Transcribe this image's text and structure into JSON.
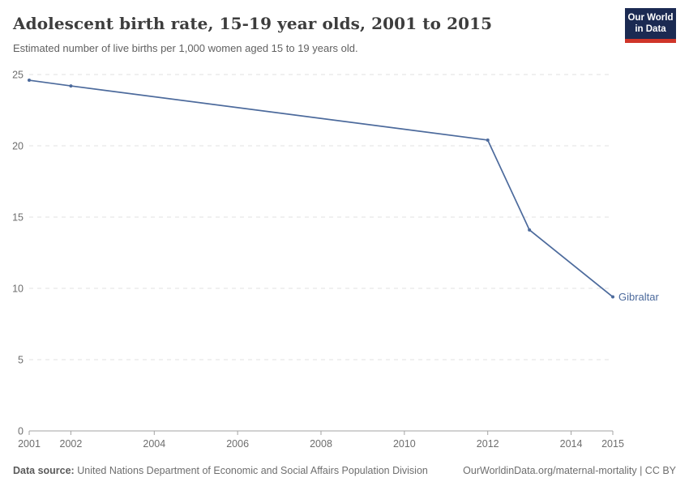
{
  "header": {
    "title": "Adolescent birth rate, 15-19 year olds, 2001 to 2015",
    "subtitle": "Estimated number of live births per 1,000 women aged 15 to 19 years old."
  },
  "logo": {
    "line1": "Our World",
    "line2": "in Data",
    "bg_color": "#1b2a52",
    "bar_color": "#cf3529"
  },
  "chart_data": {
    "type": "line",
    "title": "Adolescent birth rate, 15-19 year olds, 2001 to 2015",
    "xlabel": "",
    "ylabel": "",
    "xlim": [
      2001,
      2015
    ],
    "ylim": [
      0,
      25
    ],
    "x_ticks": [
      2001,
      2002,
      2004,
      2006,
      2008,
      2010,
      2012,
      2014,
      2015
    ],
    "y_ticks": [
      0,
      5,
      10,
      15,
      20,
      25
    ],
    "grid": "horizontal-dashed",
    "legend_position": "end-of-line-label",
    "series": [
      {
        "name": "Gibraltar",
        "color": "#4c6a9c",
        "x": [
          2001,
          2002,
          2012,
          2013,
          2015
        ],
        "values": [
          24.6,
          24.2,
          20.4,
          14.1,
          9.4
        ]
      }
    ]
  },
  "footer": {
    "source_label": "Data source:",
    "source_text": "United Nations Department of Economic and Social Affairs Population Division",
    "attribution": "OurWorldinData.org/maternal-mortality | CC BY"
  },
  "colors": {
    "line": "#4c6a9c",
    "grid": "#e0e0e0",
    "axis": "#a3a3a3",
    "tick_text": "#6e6e6e",
    "title_text": "#3d3d3d",
    "subtitle_text": "#616161"
  }
}
